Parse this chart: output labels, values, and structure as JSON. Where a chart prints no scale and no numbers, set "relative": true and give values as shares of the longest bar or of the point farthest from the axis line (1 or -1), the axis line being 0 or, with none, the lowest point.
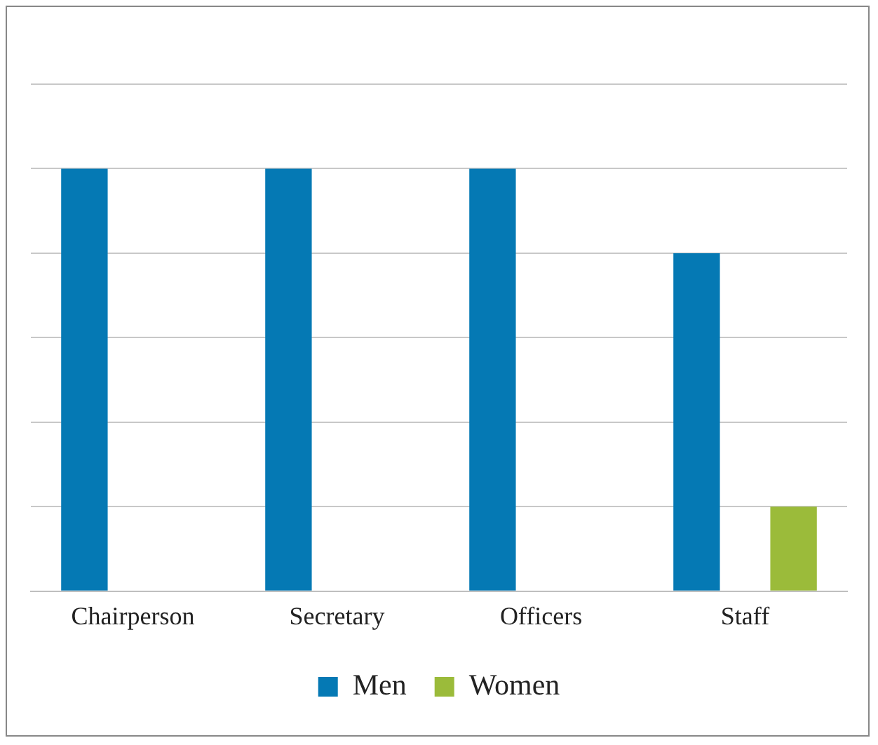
{
  "chart_data": {
    "type": "bar",
    "categories": [
      "Chairperson",
      "Secretary",
      "Officers",
      "Staff"
    ],
    "relative": true,
    "grid": "y",
    "legend": "bottom",
    "series": [
      {
        "name": "Men",
        "color": "#0579b4",
        "values": [
          1,
          1,
          1,
          0.8
        ]
      },
      {
        "name": "Women",
        "color": "#9bbb3a",
        "values": [
          0,
          0,
          0,
          0.2
        ]
      }
    ]
  }
}
